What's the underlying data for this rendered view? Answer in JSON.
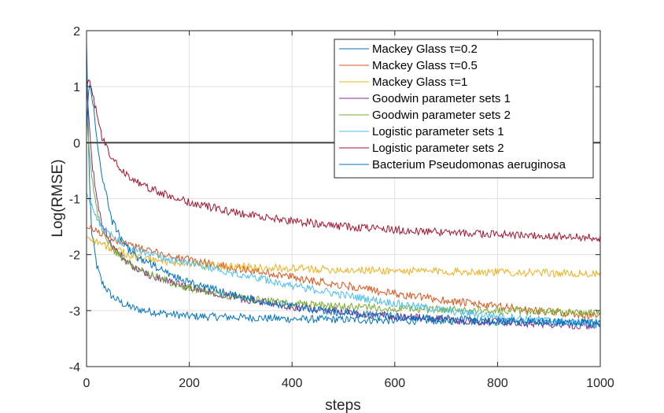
{
  "chart_data": {
    "type": "line",
    "title": "",
    "xlabel": "steps",
    "ylabel": "Log(RMSE)",
    "xlim": [
      0,
      1000
    ],
    "ylim": [
      -4,
      2
    ],
    "xticks": [
      0,
      200,
      400,
      600,
      800,
      1000
    ],
    "yticks": [
      -4,
      -3,
      -2,
      -1,
      0,
      1,
      2
    ],
    "xtick_labels": [
      "0",
      "200",
      "400",
      "600",
      "800",
      "1000"
    ],
    "ytick_labels": [
      "-4",
      "-3",
      "-2",
      "-1",
      "0",
      "1",
      "2"
    ],
    "grid": true,
    "legend_position": "top-right",
    "reference_line": {
      "y": 0,
      "color": "#404040"
    },
    "series": [
      {
        "name": "Mackey Glass τ=0.2",
        "color": "#0072BD",
        "x": [
          0,
          5,
          10,
          20,
          30,
          50,
          75,
          100,
          150,
          200,
          300,
          400,
          500,
          600,
          700,
          800,
          900,
          1000
        ],
        "y": [
          1.8,
          -0.5,
          -1.6,
          -2.2,
          -2.5,
          -2.75,
          -2.9,
          -2.98,
          -3.05,
          -3.1,
          -3.12,
          -3.15,
          -3.16,
          -3.18,
          -3.18,
          -3.2,
          -3.2,
          -3.22
        ]
      },
      {
        "name": "Mackey Glass τ=0.5",
        "color": "#D95319",
        "x": [
          0,
          10,
          50,
          100,
          150,
          200,
          300,
          400,
          500,
          600,
          700,
          800,
          900,
          1000
        ],
        "y": [
          -1.52,
          -1.55,
          -1.7,
          -1.88,
          -2.0,
          -2.1,
          -2.25,
          -2.4,
          -2.55,
          -2.7,
          -2.82,
          -2.93,
          -3.02,
          -3.1
        ]
      },
      {
        "name": "Mackey Glass τ=1",
        "color": "#EDB120",
        "x": [
          0,
          10,
          50,
          100,
          150,
          200,
          300,
          400,
          500,
          600,
          700,
          800,
          900,
          1000
        ],
        "y": [
          -1.68,
          -1.72,
          -1.9,
          -2.05,
          -2.12,
          -2.17,
          -2.22,
          -2.25,
          -2.27,
          -2.29,
          -2.3,
          -2.31,
          -2.33,
          -2.35
        ]
      },
      {
        "name": "Goodwin parameter sets 1",
        "color": "#7E2F8E",
        "x": [
          0,
          5,
          10,
          20,
          30,
          50,
          75,
          100,
          150,
          200,
          300,
          400,
          500,
          600,
          700,
          800,
          900,
          1000
        ],
        "y": [
          1.0,
          0.4,
          -0.3,
          -1.0,
          -1.45,
          -1.85,
          -2.1,
          -2.28,
          -2.45,
          -2.58,
          -2.78,
          -2.93,
          -3.03,
          -3.1,
          -3.16,
          -3.2,
          -3.24,
          -3.28
        ]
      },
      {
        "name": "Goodwin parameter sets 2",
        "color": "#77AC30",
        "x": [
          0,
          5,
          10,
          20,
          30,
          50,
          75,
          100,
          150,
          200,
          300,
          400,
          500,
          600,
          700,
          800,
          900,
          1000
        ],
        "y": [
          0.5,
          -0.1,
          -0.6,
          -1.2,
          -1.55,
          -1.9,
          -2.1,
          -2.25,
          -2.45,
          -2.6,
          -2.77,
          -2.88,
          -2.93,
          -2.96,
          -2.98,
          -3.0,
          -3.02,
          -3.05
        ]
      },
      {
        "name": "Logistic parameter sets 1",
        "color": "#4DBEEE",
        "x": [
          0,
          10,
          20,
          30,
          50,
          75,
          100,
          150,
          200,
          300,
          400,
          500,
          600,
          700,
          800,
          900,
          1000
        ],
        "y": [
          -0.9,
          -1.15,
          -1.35,
          -1.5,
          -1.68,
          -1.82,
          -1.92,
          -2.05,
          -2.15,
          -2.35,
          -2.55,
          -2.72,
          -2.87,
          -3.0,
          -3.1,
          -3.18,
          -3.25
        ]
      },
      {
        "name": "Logistic parameter sets 2",
        "color": "#A2142F",
        "x": [
          0,
          5,
          10,
          20,
          30,
          50,
          75,
          100,
          150,
          200,
          300,
          400,
          500,
          600,
          700,
          800,
          900,
          1000
        ],
        "y": [
          1.0,
          1.15,
          0.95,
          0.5,
          0.1,
          -0.3,
          -0.55,
          -0.72,
          -0.92,
          -1.07,
          -1.27,
          -1.4,
          -1.5,
          -1.56,
          -1.6,
          -1.64,
          -1.67,
          -1.7
        ]
      },
      {
        "name": "Bacterium Pseudomonas aeruginosa",
        "color": "#0072BD",
        "x": [
          0,
          5,
          10,
          15,
          20,
          30,
          50,
          75,
          100,
          150,
          200,
          300,
          400,
          500,
          600,
          700,
          800,
          900,
          1000
        ],
        "y": [
          0.3,
          1.05,
          0.9,
          0.5,
          0.1,
          -0.6,
          -1.4,
          -1.85,
          -2.05,
          -2.3,
          -2.5,
          -2.75,
          -2.93,
          -3.05,
          -3.1,
          -3.15,
          -3.18,
          -3.2,
          -3.22
        ]
      }
    ]
  }
}
